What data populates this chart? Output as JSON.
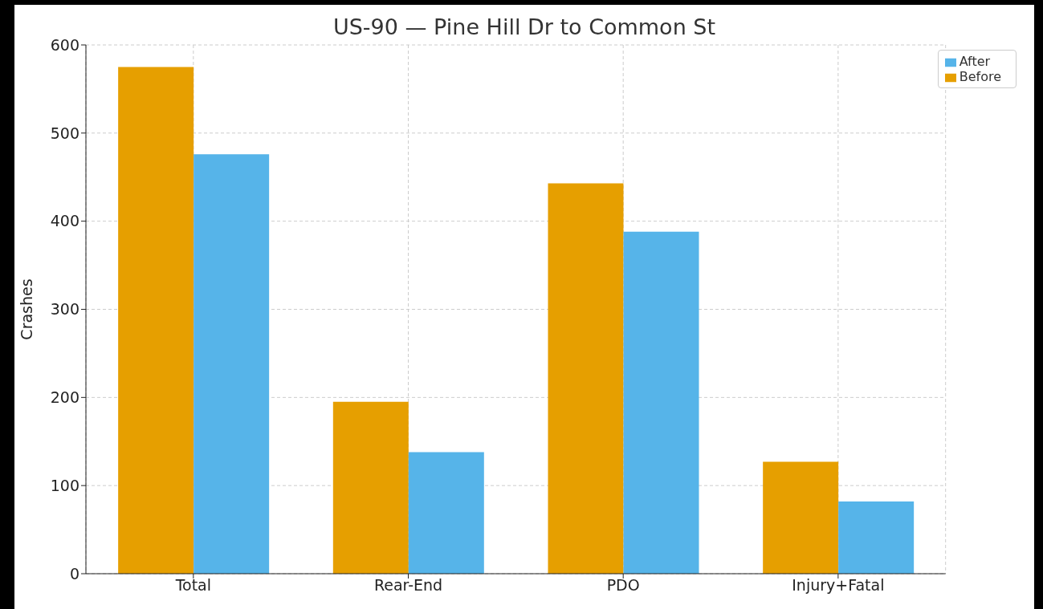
{
  "chart_data": {
    "type": "bar",
    "title": "US-90 — Pine Hill Dr to Common St",
    "ylabel": "Crashes",
    "categories": [
      "Total",
      "Rear-End",
      "PDO",
      "Injury+Fatal"
    ],
    "series": [
      {
        "name": "Before",
        "color": "#e69f00",
        "values": [
          575,
          195,
          443,
          127
        ]
      },
      {
        "name": "After",
        "color": "#56b4e9",
        "values": [
          476,
          138,
          388,
          82
        ]
      }
    ],
    "ylim": [
      0,
      600
    ],
    "yticks": [
      0,
      100,
      200,
      300,
      400,
      500,
      600
    ],
    "grid": true,
    "legend": "top right"
  }
}
